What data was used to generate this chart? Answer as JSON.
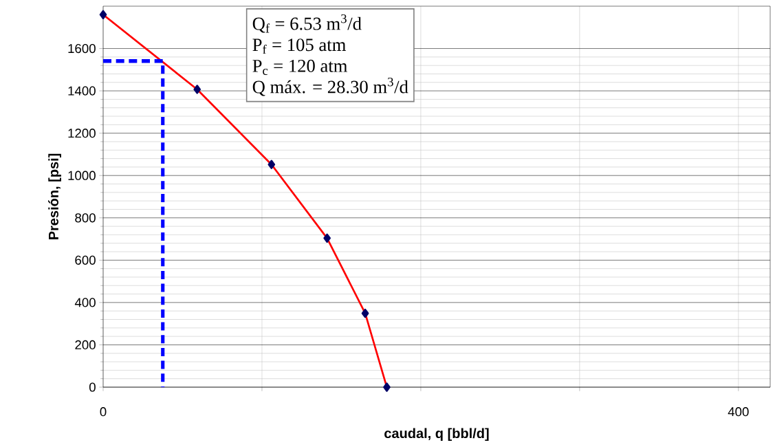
{
  "chart_data": {
    "type": "line",
    "xlabel": "caudal, q [bbl/d]",
    "ylabel": "Presión, [psi]",
    "xlim": [
      0,
      420
    ],
    "ylim": [
      0,
      1800
    ],
    "xticks": [
      0,
      {
        "value": 100,
        "label": null
      },
      {
        "value": 200,
        "label": null
      },
      {
        "value": 300,
        "label": null
      },
      400
    ],
    "yticks": [
      0,
      200,
      400,
      600,
      800,
      1000,
      1200,
      1400,
      1600
    ],
    "grid": true,
    "series": [
      {
        "color": "#ff0000",
        "marker": "diamond",
        "x": [
          0,
          59.2,
          106,
          141,
          165,
          178.6
        ],
        "values": [
          1760,
          1407,
          1052,
          704,
          349,
          0
        ]
      },
      {
        "color": "#0000ff",
        "line_style": "dashed",
        "marker": "none",
        "x": [
          0,
          37.6,
          37.6
        ],
        "values": [
          1541,
          1541,
          0
        ]
      }
    ],
    "annotations": [
      "Q$_{f}$ = 6.53 m$^{3}$/d",
      "P$_{f}$ = 105 atm",
      "P$_{c}$ = 120 atm",
      "Q máx. = 28.30 m$^{3}$/d"
    ]
  }
}
